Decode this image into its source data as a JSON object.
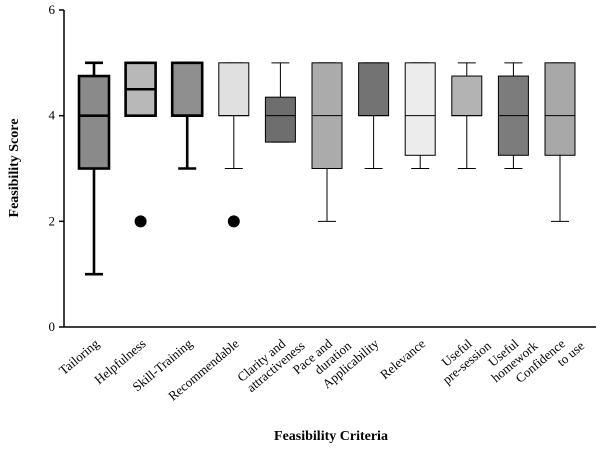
{
  "chart_data": {
    "type": "boxplot",
    "title": "",
    "xlabel": "Feasibility Criteria",
    "ylabel": "Feasibility Score",
    "ylim": [
      0,
      6
    ],
    "yticks": [
      "0",
      "2",
      "4",
      "6"
    ],
    "grid": false,
    "categories": [
      {
        "label_lines": [
          "Tailoring"
        ],
        "min": 1,
        "q1": 3,
        "median": 4,
        "q3": 4.75,
        "max": 5,
        "outliers": [],
        "fill": "#8a8a8a",
        "bold": true
      },
      {
        "label_lines": [
          "Helpfulness"
        ],
        "min": 4,
        "q1": 4,
        "median": 4.5,
        "q3": 5,
        "max": 5,
        "outliers": [
          2
        ],
        "fill": "#b8b8b8",
        "bold": true
      },
      {
        "label_lines": [
          "Skill-Training"
        ],
        "min": 3,
        "q1": 4,
        "median": 4,
        "q3": 5,
        "max": 5,
        "outliers": [],
        "fill": "#8f8f8f",
        "bold": true
      },
      {
        "label_lines": [
          "Recommendable"
        ],
        "min": 3,
        "q1": 4,
        "median": 4,
        "q3": 5,
        "max": 5,
        "outliers": [
          2
        ],
        "fill": "#e0e0e0",
        "bold": false
      },
      {
        "label_lines": [
          "Clarity and",
          "attractiveness"
        ],
        "min": 3.5,
        "q1": 3.5,
        "median": 4,
        "q3": 4.35,
        "max": 5,
        "outliers": [],
        "fill": "#6e6e6e",
        "bold": false
      },
      {
        "label_lines": [
          "Pace and",
          "duration"
        ],
        "min": 2,
        "q1": 3,
        "median": 4,
        "q3": 5,
        "max": 5,
        "outliers": [],
        "fill": "#ababab",
        "bold": false
      },
      {
        "label_lines": [
          "Applicability"
        ],
        "min": 3,
        "q1": 4,
        "median": 4,
        "q3": 5,
        "max": 5,
        "outliers": [],
        "fill": "#737373",
        "bold": false
      },
      {
        "label_lines": [
          "Relevance"
        ],
        "min": 3,
        "q1": 3.25,
        "median": 4,
        "q3": 5,
        "max": 5,
        "outliers": [],
        "fill": "#ececec",
        "bold": false
      },
      {
        "label_lines": [
          "Useful",
          "pre-session"
        ],
        "min": 3,
        "q1": 4,
        "median": 4,
        "q3": 4.75,
        "max": 5,
        "outliers": [],
        "fill": "#b3b3b3",
        "bold": false
      },
      {
        "label_lines": [
          "Useful",
          "homework"
        ],
        "min": 3,
        "q1": 3.25,
        "median": 4,
        "q3": 4.75,
        "max": 5,
        "outliers": [],
        "fill": "#7c7c7c",
        "bold": false
      },
      {
        "label_lines": [
          "Confidence",
          "to use"
        ],
        "min": 2,
        "q1": 3.25,
        "median": 4,
        "q3": 5,
        "max": 5,
        "outliers": [],
        "fill": "#a8a8a8",
        "bold": false
      }
    ]
  }
}
